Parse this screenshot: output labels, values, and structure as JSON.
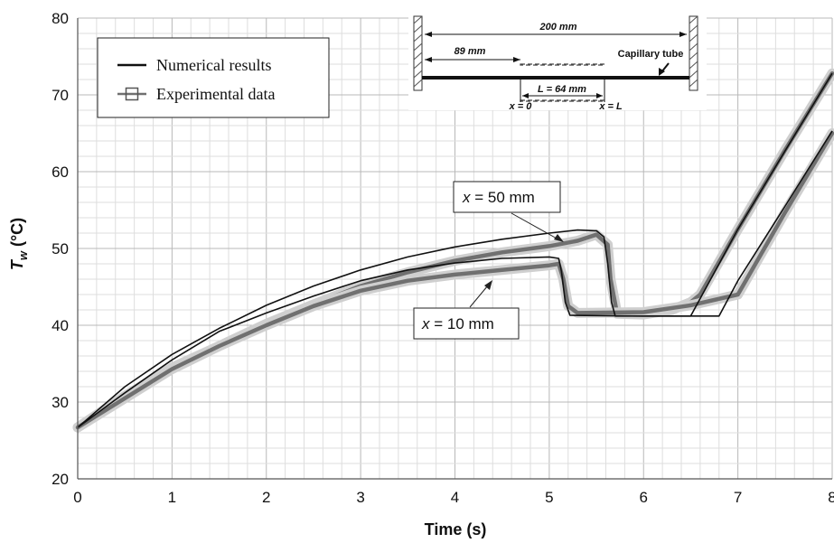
{
  "chart_data": {
    "type": "line",
    "xlabel": "Time (s)",
    "ylabel_main": "T",
    "ylabel_sub": "w",
    "ylabel_unit": " (°C)",
    "xlim": [
      0,
      8
    ],
    "ylim": [
      20,
      80
    ],
    "x_ticks": [
      "0",
      "1",
      "2",
      "3",
      "4",
      "5",
      "6",
      "7",
      "8"
    ],
    "y_ticks": [
      "20",
      "30",
      "40",
      "50",
      "60",
      "70",
      "80"
    ],
    "grid": true,
    "legend_position": "top-left",
    "legend": [
      {
        "label": "Numerical results",
        "style": "line",
        "color": "#111111"
      },
      {
        "label": "Experimental data",
        "style": "square-marker",
        "color": "#707070"
      }
    ],
    "annotations": [
      {
        "var": "x",
        "text": " = 50 mm"
      },
      {
        "var": "x",
        "text": " = 10 mm"
      }
    ],
    "inset": {
      "total_length": "200 mm",
      "offset": "89 mm",
      "heated_length": "L = 64 mm",
      "label_tube": "Capillary tube",
      "x0_label": "x = 0",
      "xL_label": "x = L"
    },
    "series": [
      {
        "location": "x = 50 mm",
        "kind": "numerical",
        "x": [
          0,
          0.5,
          1,
          1.5,
          2,
          2.5,
          3,
          3.5,
          4,
          4.5,
          5,
          5.3,
          5.5,
          5.58,
          5.62,
          5.66,
          5.7,
          6,
          6.5,
          7,
          7.5,
          8
        ],
        "y": [
          26.7,
          32,
          36.2,
          39.6,
          42.6,
          45.1,
          47.2,
          48.9,
          50.2,
          51.2,
          52,
          52.4,
          52.3,
          51.5,
          48,
          43,
          41.2,
          41.2,
          41.2,
          52.5,
          62.7,
          72.8
        ]
      },
      {
        "location": "x = 50 mm",
        "kind": "experimental",
        "x": [
          0,
          0.5,
          1,
          1.5,
          2,
          2.5,
          3,
          3.5,
          4,
          4.5,
          5,
          5.3,
          5.5,
          5.62,
          5.65,
          5.72,
          6,
          6.3,
          6.5,
          6.6,
          7,
          7.5,
          8
        ],
        "y": [
          26.7,
          30.8,
          34.5,
          37.3,
          40.2,
          42.7,
          45.1,
          46.9,
          48.4,
          49.5,
          50.3,
          51,
          51.8,
          50.5,
          46,
          41.5,
          41.4,
          42,
          43,
          44,
          52.5,
          62.8,
          72.8
        ]
      },
      {
        "location": "x = 10 mm",
        "kind": "numerical",
        "x": [
          0,
          0.5,
          1,
          1.5,
          2,
          2.5,
          3,
          3.5,
          4,
          4.5,
          5,
          5.1,
          5.13,
          5.17,
          5.22,
          6,
          6.5,
          6.8,
          7,
          7.5,
          8
        ],
        "y": [
          26.7,
          31.2,
          35.5,
          39.2,
          41.6,
          43.8,
          45.8,
          47.2,
          48.1,
          48.7,
          48.9,
          48.7,
          47,
          43,
          41.3,
          41.2,
          41.2,
          41.2,
          45.8,
          55.5,
          65.3
        ]
      },
      {
        "location": "x = 10 mm",
        "kind": "experimental",
        "x": [
          0,
          0.5,
          1,
          1.5,
          2,
          2.5,
          3,
          3.5,
          4,
          4.5,
          5,
          5.1,
          5.15,
          5.2,
          5.3,
          6,
          6.5,
          7,
          7.5,
          8
        ],
        "y": [
          26.7,
          30.5,
          34.3,
          37.3,
          40,
          42.5,
          44.5,
          45.8,
          46.6,
          47.2,
          47.8,
          48,
          46,
          42.5,
          41.6,
          41.7,
          42.6,
          44,
          54.7,
          65
        ]
      }
    ]
  }
}
